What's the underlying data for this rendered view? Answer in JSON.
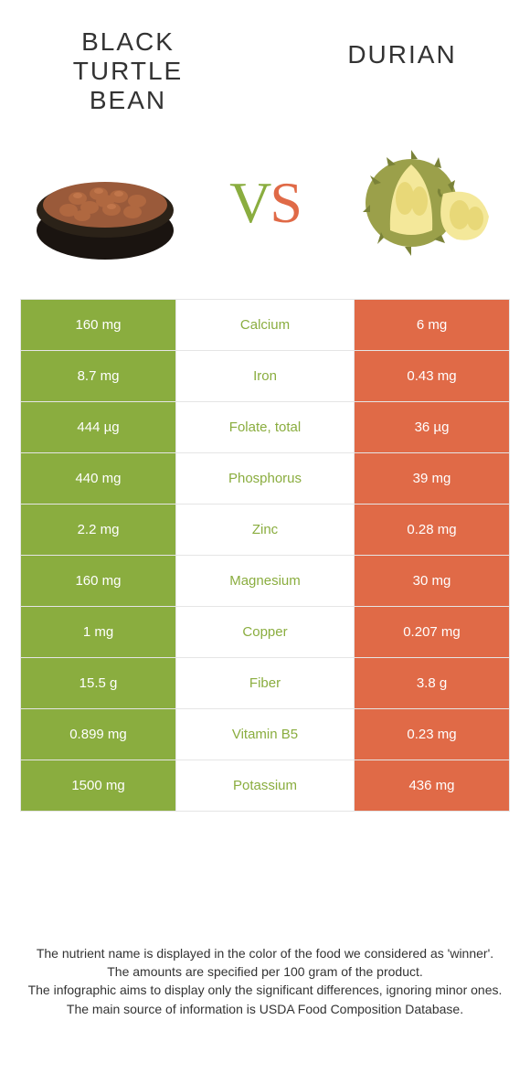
{
  "colors": {
    "left": "#8aad3f",
    "right": "#e06a47",
    "text": "#333333",
    "border": "#e5e5e5",
    "bg": "#ffffff"
  },
  "header": {
    "left_title": "BLACK TURTLE BEAN",
    "right_title": "DURIAN",
    "vs_v": "V",
    "vs_s": "S"
  },
  "rows": [
    {
      "left": "160 mg",
      "label": "Calcium",
      "right": "6 mg",
      "winner": "left"
    },
    {
      "left": "8.7 mg",
      "label": "Iron",
      "right": "0.43 mg",
      "winner": "left"
    },
    {
      "left": "444 µg",
      "label": "Folate, total",
      "right": "36 µg",
      "winner": "left"
    },
    {
      "left": "440 mg",
      "label": "Phosphorus",
      "right": "39 mg",
      "winner": "left"
    },
    {
      "left": "2.2 mg",
      "label": "Zinc",
      "right": "0.28 mg",
      "winner": "left"
    },
    {
      "left": "160 mg",
      "label": "Magnesium",
      "right": "30 mg",
      "winner": "left"
    },
    {
      "left": "1 mg",
      "label": "Copper",
      "right": "0.207 mg",
      "winner": "left"
    },
    {
      "left": "15.5 g",
      "label": "Fiber",
      "right": "3.8 g",
      "winner": "left"
    },
    {
      "left": "0.899 mg",
      "label": "Vitamin B5",
      "right": "0.23 mg",
      "winner": "left"
    },
    {
      "left": "1500 mg",
      "label": "Potassium",
      "right": "436 mg",
      "winner": "left"
    }
  ],
  "footer": {
    "line1": "The nutrient name is displayed in the color of the food we considered as 'winner'.",
    "line2": "The amounts are specified per 100 gram of the product.",
    "line3": "The infographic aims to display only the significant differences, ignoring minor ones.",
    "line4": "The main source of information is USDA Food Composition Database."
  }
}
